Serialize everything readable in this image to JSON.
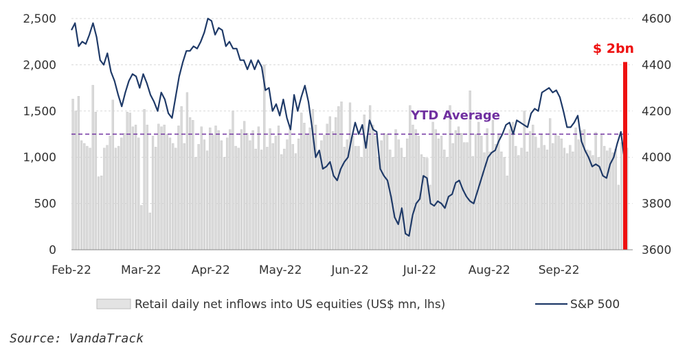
{
  "chart_data": {
    "type": "bar+line",
    "title": "",
    "source": "Source: VandaTrack",
    "x_tick_labels": [
      "Feb-22",
      "Mar-22",
      "Apr-22",
      "May-22",
      "Jun-22",
      "Jul-22",
      "Aug-22",
      "Sep-22"
    ],
    "y_left": {
      "ylim": [
        0,
        2500
      ],
      "ticks": [
        "0",
        "500",
        "1,000",
        "1,500",
        "2,000",
        "2,500"
      ]
    },
    "y_right": {
      "ylim": [
        3600,
        4600
      ],
      "ticks": [
        "3600",
        "3800",
        "4000",
        "4200",
        "4400",
        "4600"
      ]
    },
    "gridlines": "horizontal-dashed",
    "legend_position": "bottom",
    "ytd_average": {
      "label": "YTD Average",
      "value": 1250,
      "color": "#7030a0"
    },
    "marker": {
      "label": "$ 2bn",
      "value": 2030,
      "color": "#ee1111"
    },
    "series": [
      {
        "name": "Retail daily net inflows into US equities (US$ mn, lhs)",
        "type": "bar",
        "axis": "left",
        "color": "#d9d9d9",
        "values": [
          1630,
          1500,
          1660,
          1180,
          1150,
          1120,
          1100,
          1780,
          1490,
          790,
          800,
          1100,
          1130,
          1230,
          1620,
          1100,
          1120,
          1210,
          1260,
          1490,
          1480,
          1330,
          1350,
          1210,
          480,
          1520,
          1350,
          400,
          1230,
          1110,
          1360,
          1330,
          1350,
          1250,
          1210,
          1150,
          1100,
          1340,
          1550,
          1150,
          1700,
          1430,
          1400,
          1000,
          1140,
          1330,
          1190,
          1070,
          1320,
          1240,
          1340,
          1290,
          1180,
          1000,
          1210,
          1300,
          1500,
          1120,
          1100,
          1300,
          1390,
          1260,
          1180,
          1290,
          1090,
          1330,
          1080,
          2000,
          1110,
          1310,
          1150,
          1230,
          1340,
          1030,
          1090,
          1190,
          1350,
          1140,
          1040,
          1200,
          1480,
          1370,
          1250,
          1320,
          1520,
          1350,
          1050,
          1180,
          1240,
          1360,
          1440,
          1280,
          1430,
          1550,
          1600,
          1110,
          1190,
          1590,
          1230,
          1120,
          1120,
          1000,
          1460,
          1230,
          1560,
          1350,
          1230,
          1000,
          1180,
          1260,
          1250,
          1080,
          1000,
          1300,
          1190,
          1100,
          1000,
          1200,
          1560,
          1350,
          1300,
          1230,
          1030,
          1000,
          990,
          700,
          1380,
          1300,
          1200,
          1230,
          1080,
          1000,
          1560,
          1150,
          1290,
          1330,
          1260,
          1160,
          1160,
          1720,
          1010,
          1250,
          1380,
          1230,
          1050,
          1310,
          1060,
          1400,
          1140,
          1250,
          1060,
          1000,
          800,
          1300,
          1380,
          1120,
          1020,
          1100,
          1500,
          1060,
          1280,
          1350,
          1220,
          1100,
          1250,
          1130,
          1080,
          1420,
          1150,
          1240,
          1230,
          1200,
          1100,
          1040,
          1130,
          1060,
          1320,
          1190,
          1290,
          1300,
          1080,
          1070,
          1020,
          1270,
          1000,
          1240,
          1120,
          1070,
          1100,
          1050,
          1090,
          700,
          1160,
          1050,
          1100
        ]
      },
      {
        "name": "S&P 500",
        "type": "line",
        "axis": "right",
        "color": "#1f3a68",
        "values": [
          4550,
          4580,
          4480,
          4500,
          4490,
          4530,
          4580,
          4520,
          4420,
          4400,
          4450,
          4370,
          4330,
          4270,
          4220,
          4280,
          4330,
          4360,
          4350,
          4300,
          4360,
          4320,
          4270,
          4240,
          4200,
          4280,
          4250,
          4190,
          4170,
          4260,
          4350,
          4410,
          4460,
          4460,
          4480,
          4470,
          4500,
          4540,
          4600,
          4590,
          4530,
          4560,
          4550,
          4480,
          4500,
          4470,
          4470,
          4420,
          4420,
          4380,
          4420,
          4380,
          4420,
          4390,
          4290,
          4300,
          4200,
          4230,
          4180,
          4250,
          4170,
          4120,
          4270,
          4200,
          4260,
          4310,
          4240,
          4130,
          4000,
          4030,
          3950,
          3960,
          3980,
          3920,
          3900,
          3950,
          3980,
          4000,
          4080,
          4150,
          4100,
          4140,
          4040,
          4160,
          4120,
          4110,
          3950,
          3920,
          3900,
          3830,
          3740,
          3710,
          3780,
          3670,
          3660,
          3750,
          3800,
          3820,
          3920,
          3910,
          3800,
          3790,
          3810,
          3800,
          3780,
          3830,
          3840,
          3890,
          3900,
          3860,
          3830,
          3810,
          3800,
          3850,
          3900,
          3950,
          4000,
          4020,
          4030,
          4070,
          4100,
          4140,
          4150,
          4100,
          4160,
          4150,
          4140,
          4130,
          4190,
          4210,
          4200,
          4280,
          4290,
          4300,
          4280,
          4290,
          4260,
          4200,
          4130,
          4130,
          4150,
          4180,
          4070,
          4030,
          4000,
          3960,
          3970,
          3960,
          3920,
          3910,
          3970,
          4000,
          4060,
          4110,
          3990
        ]
      }
    ]
  }
}
